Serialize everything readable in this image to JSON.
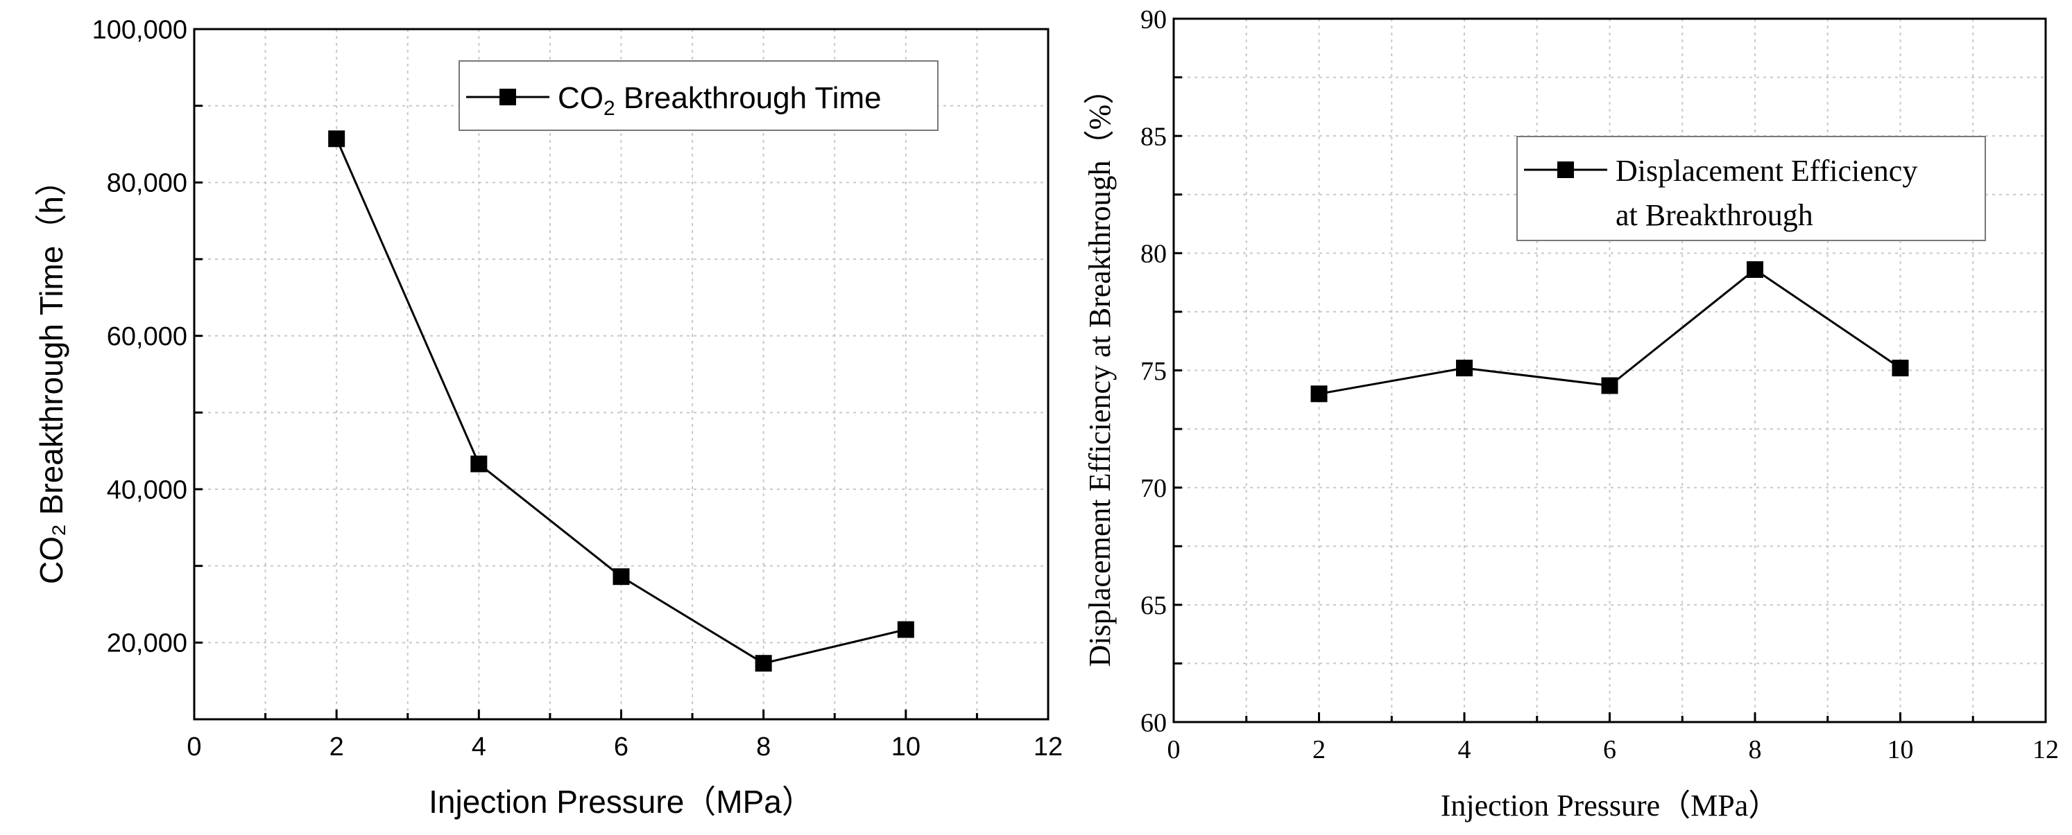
{
  "chart_data": [
    {
      "type": "line",
      "title": "",
      "xlabel": "Injection Pressure（MPa）",
      "ylabel_main": "CO₂  Breakthrough Time（h）",
      "x": [
        2,
        4,
        6,
        8,
        10
      ],
      "series": [
        {
          "name": "CO2 Breakthrough Time",
          "legend_main": "CO",
          "legend_sub": "2",
          "legend_rest": " Breakthrough Time",
          "values": [
            85700,
            43300,
            28600,
            17300,
            21700
          ]
        }
      ],
      "xlim": [
        0,
        12
      ],
      "ylim": [
        10000,
        100000
      ],
      "xticks": [
        0,
        2,
        4,
        6,
        8,
        10,
        12
      ],
      "xtick_labels": [
        "0",
        "2",
        "4",
        "6",
        "8",
        "10",
        "12"
      ],
      "yticks": [
        20000,
        40000,
        60000,
        80000,
        100000
      ],
      "ytick_labels": [
        "20,000",
        "40,000",
        "60,000",
        "80,000",
        "100,000"
      ],
      "grid": true,
      "legend_position": "top-right",
      "marker": "square",
      "color": "#000000"
    },
    {
      "type": "line",
      "title": "",
      "xlabel": "Injection Pressure（MPa）",
      "ylabel_main": "Displacement Efficiency at Breakthrough（%）",
      "x": [
        2,
        4,
        6,
        8,
        10
      ],
      "series": [
        {
          "name": "Displacement Efficiency at Breakthrough",
          "legend_line1": "Displacement Efficiency",
          "legend_line2": "at Breakthrough",
          "values": [
            74.0,
            75.1,
            74.35,
            79.3,
            75.1
          ]
        }
      ],
      "xlim": [
        0,
        12
      ],
      "ylim": [
        60,
        90
      ],
      "xticks": [
        0,
        2,
        4,
        6,
        8,
        10,
        12
      ],
      "xtick_labels": [
        "0",
        "2",
        "4",
        "6",
        "8",
        "10",
        "12"
      ],
      "yticks": [
        60,
        65,
        70,
        75,
        80,
        85,
        90
      ],
      "ytick_labels": [
        "60",
        "65",
        "70",
        "75",
        "80",
        "85",
        "90"
      ],
      "grid": true,
      "legend_position": "top-right",
      "marker": "square",
      "color": "#000000"
    }
  ]
}
